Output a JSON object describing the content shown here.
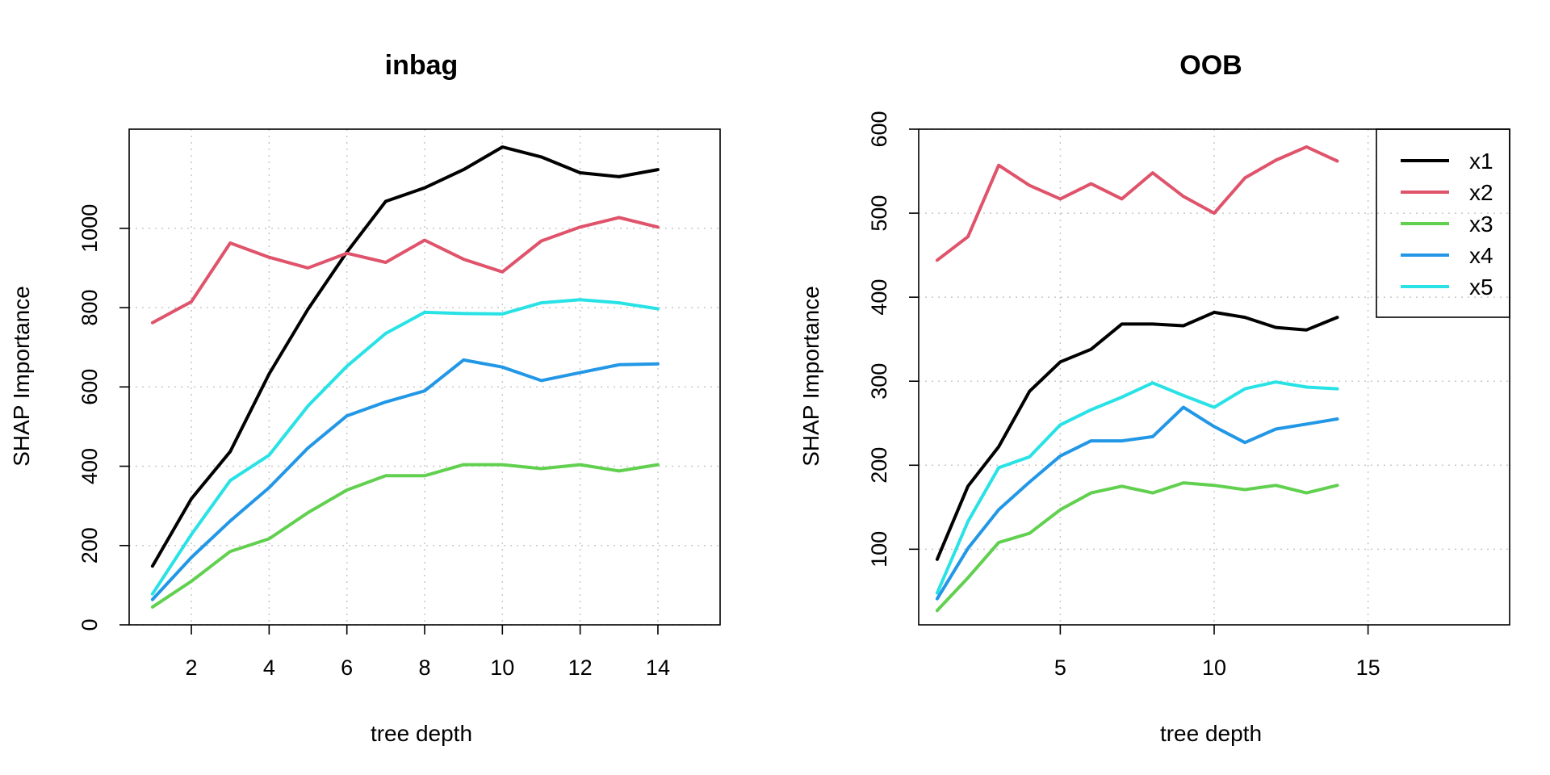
{
  "chart_data": [
    {
      "type": "line",
      "title": "inbag",
      "xlabel": "tree depth",
      "ylabel": "SHAP Importance",
      "xlim": [
        0.4,
        15.6
      ],
      "ylim": [
        0,
        1250
      ],
      "xticks": [
        2,
        4,
        6,
        8,
        10,
        12,
        14
      ],
      "yticks": [
        0,
        200,
        400,
        600,
        800,
        1000
      ],
      "grid": true,
      "x": [
        1,
        2,
        3,
        4,
        5,
        6,
        7,
        8,
        9,
        10,
        11,
        12,
        13,
        14
      ],
      "series": [
        {
          "name": "x1",
          "color": "#000000",
          "values": [
            148,
            318,
            437,
            633,
            796,
            940,
            1068,
            1102,
            1148,
            1205,
            1180,
            1140,
            1130,
            1148
          ]
        },
        {
          "name": "x2",
          "color": "#DF536B",
          "values": [
            762,
            815,
            963,
            927,
            900,
            937,
            914,
            970,
            922,
            890,
            968,
            1003,
            1027,
            1003
          ]
        },
        {
          "name": "x3",
          "color": "#61D04F",
          "values": [
            45,
            110,
            185,
            217,
            283,
            340,
            376,
            376,
            404,
            404,
            394,
            404,
            388,
            404
          ]
        },
        {
          "name": "x4",
          "color": "#2297E6",
          "values": [
            64,
            170,
            262,
            346,
            446,
            527,
            562,
            590,
            668,
            650,
            616,
            636,
            656,
            658
          ]
        },
        {
          "name": "x5",
          "color": "#28E2E5",
          "values": [
            78,
            228,
            364,
            428,
            552,
            652,
            735,
            788,
            785,
            784,
            812,
            820,
            812,
            797
          ]
        }
      ]
    },
    {
      "type": "line",
      "title": "OOB",
      "xlabel": "tree depth",
      "ylabel": "SHAP Importance",
      "xlim": [
        0.4,
        19.6
      ],
      "ylim": [
        10,
        600
      ],
      "xticks": [
        5,
        10,
        15
      ],
      "yticks": [
        100,
        200,
        300,
        400,
        500,
        600
      ],
      "grid": true,
      "legend_position": "top-right",
      "x": [
        1,
        2,
        3,
        4,
        5,
        6,
        7,
        8,
        9,
        10,
        11,
        12,
        13,
        14
      ],
      "series": [
        {
          "name": "x1",
          "color": "#000000",
          "values": [
            88,
            175,
            222,
            288,
            323,
            338,
            368,
            368,
            366,
            382,
            376,
            364,
            361,
            376
          ]
        },
        {
          "name": "x2",
          "color": "#DF536B",
          "values": [
            444,
            472,
            557,
            533,
            517,
            535,
            517,
            548,
            520,
            500,
            542,
            563,
            579,
            562
          ]
        },
        {
          "name": "x3",
          "color": "#61D04F",
          "values": [
            27,
            66,
            108,
            119,
            147,
            167,
            175,
            167,
            179,
            176,
            171,
            176,
            167,
            176
          ]
        },
        {
          "name": "x4",
          "color": "#2297E6",
          "values": [
            41,
            101,
            147,
            180,
            211,
            229,
            229,
            234,
            269,
            246,
            227,
            243,
            249,
            255
          ]
        },
        {
          "name": "x5",
          "color": "#28E2E5",
          "values": [
            48,
            133,
            197,
            210,
            248,
            266,
            281,
            298,
            283,
            269,
            291,
            299,
            293,
            291
          ]
        }
      ]
    }
  ]
}
